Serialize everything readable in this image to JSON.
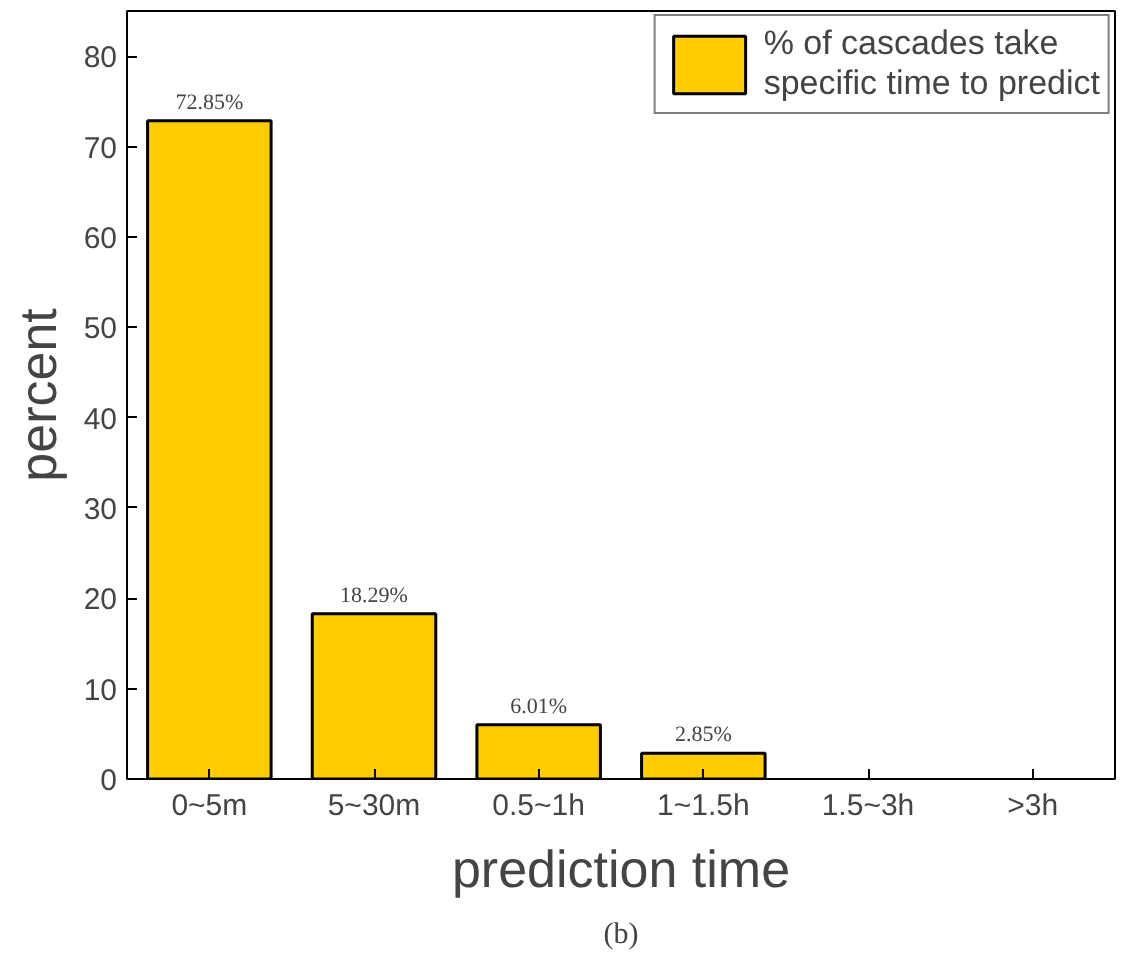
{
  "chart_data": {
    "type": "bar",
    "xlabel": "prediction time",
    "ylabel": "percent",
    "categories": [
      "0~5m",
      "5~30m",
      "0.5~1h",
      "1~1.5h",
      "1.5~3h",
      ">3h"
    ],
    "series": [
      {
        "name": "% of cascades take\nspecific time to predict",
        "color": "#ffcc00",
        "values": [
          72.85,
          18.29,
          6.01,
          2.85,
          null,
          null
        ]
      }
    ],
    "value_labels": [
      "72.85%",
      "18.29%",
      "6.01%",
      "2.85%",
      null,
      null
    ],
    "ylim": [
      0,
      85
    ],
    "yticks": [
      0,
      10,
      20,
      30,
      40,
      50,
      60,
      70,
      80
    ],
    "grid": false,
    "legend": "top right",
    "annotations": [
      "(b)"
    ]
  }
}
